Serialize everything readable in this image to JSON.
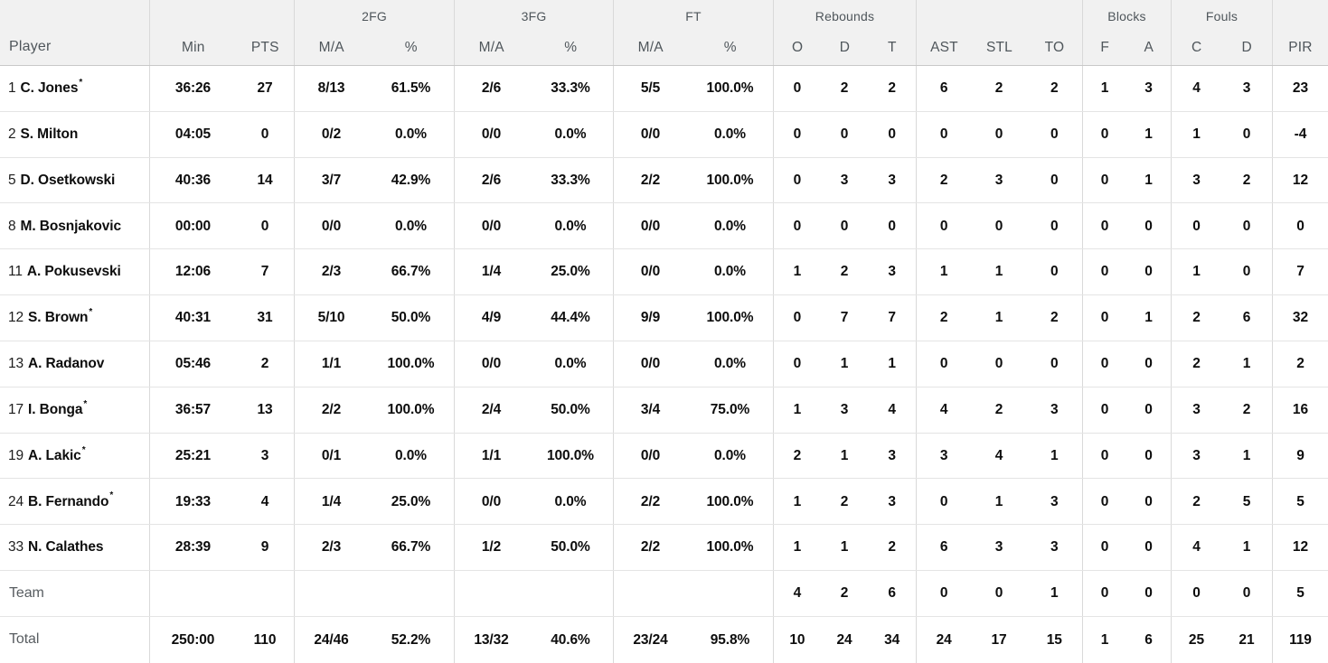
{
  "table": {
    "header": {
      "player": "Player",
      "groups": {
        "fg2": "2FG",
        "fg3": "3FG",
        "ft": "FT",
        "rebounds": "Rebounds",
        "blocks": "Blocks",
        "fouls": "Fouls"
      },
      "cols": {
        "min": "Min",
        "pts": "PTS",
        "ma": "M/A",
        "pct": "%",
        "reb_o": "O",
        "reb_d": "D",
        "reb_t": "T",
        "ast": "AST",
        "stl": "STL",
        "to": "TO",
        "blk_f": "F",
        "blk_a": "A",
        "foul_c": "C",
        "foul_d": "D",
        "pir": "PIR"
      }
    },
    "rows": [
      {
        "type": "player",
        "number": "1",
        "name": "C. Jones",
        "star": "*",
        "min": "36:26",
        "pts": "27",
        "fg2_ma": "8/13",
        "fg2_pct": "61.5%",
        "fg3_ma": "2/6",
        "fg3_pct": "33.3%",
        "ft_ma": "5/5",
        "ft_pct": "100.0%",
        "reb_o": "0",
        "reb_d": "2",
        "reb_t": "2",
        "ast": "6",
        "stl": "2",
        "to": "2",
        "blk_f": "1",
        "blk_a": "3",
        "foul_c": "4",
        "foul_d": "3",
        "pir": "23"
      },
      {
        "type": "player",
        "number": "2",
        "name": "S. Milton",
        "star": "",
        "min": "04:05",
        "pts": "0",
        "fg2_ma": "0/2",
        "fg2_pct": "0.0%",
        "fg3_ma": "0/0",
        "fg3_pct": "0.0%",
        "ft_ma": "0/0",
        "ft_pct": "0.0%",
        "reb_o": "0",
        "reb_d": "0",
        "reb_t": "0",
        "ast": "0",
        "stl": "0",
        "to": "0",
        "blk_f": "0",
        "blk_a": "1",
        "foul_c": "1",
        "foul_d": "0",
        "pir": "-4"
      },
      {
        "type": "player",
        "number": "5",
        "name": "D. Osetkowski",
        "star": "",
        "min": "40:36",
        "pts": "14",
        "fg2_ma": "3/7",
        "fg2_pct": "42.9%",
        "fg3_ma": "2/6",
        "fg3_pct": "33.3%",
        "ft_ma": "2/2",
        "ft_pct": "100.0%",
        "reb_o": "0",
        "reb_d": "3",
        "reb_t": "3",
        "ast": "2",
        "stl": "3",
        "to": "0",
        "blk_f": "0",
        "blk_a": "1",
        "foul_c": "3",
        "foul_d": "2",
        "pir": "12"
      },
      {
        "type": "player",
        "number": "8",
        "name": "M. Bosnjakovic",
        "star": "",
        "min": "00:00",
        "pts": "0",
        "fg2_ma": "0/0",
        "fg2_pct": "0.0%",
        "fg3_ma": "0/0",
        "fg3_pct": "0.0%",
        "ft_ma": "0/0",
        "ft_pct": "0.0%",
        "reb_o": "0",
        "reb_d": "0",
        "reb_t": "0",
        "ast": "0",
        "stl": "0",
        "to": "0",
        "blk_f": "0",
        "blk_a": "0",
        "foul_c": "0",
        "foul_d": "0",
        "pir": "0"
      },
      {
        "type": "player",
        "number": "11",
        "name": "A. Pokusevski",
        "star": "",
        "min": "12:06",
        "pts": "7",
        "fg2_ma": "2/3",
        "fg2_pct": "66.7%",
        "fg3_ma": "1/4",
        "fg3_pct": "25.0%",
        "ft_ma": "0/0",
        "ft_pct": "0.0%",
        "reb_o": "1",
        "reb_d": "2",
        "reb_t": "3",
        "ast": "1",
        "stl": "1",
        "to": "0",
        "blk_f": "0",
        "blk_a": "0",
        "foul_c": "1",
        "foul_d": "0",
        "pir": "7"
      },
      {
        "type": "player",
        "number": "12",
        "name": "S. Brown",
        "star": "*",
        "min": "40:31",
        "pts": "31",
        "fg2_ma": "5/10",
        "fg2_pct": "50.0%",
        "fg3_ma": "4/9",
        "fg3_pct": "44.4%",
        "ft_ma": "9/9",
        "ft_pct": "100.0%",
        "reb_o": "0",
        "reb_d": "7",
        "reb_t": "7",
        "ast": "2",
        "stl": "1",
        "to": "2",
        "blk_f": "0",
        "blk_a": "1",
        "foul_c": "2",
        "foul_d": "6",
        "pir": "32"
      },
      {
        "type": "player",
        "number": "13",
        "name": "A. Radanov",
        "star": "",
        "min": "05:46",
        "pts": "2",
        "fg2_ma": "1/1",
        "fg2_pct": "100.0%",
        "fg3_ma": "0/0",
        "fg3_pct": "0.0%",
        "ft_ma": "0/0",
        "ft_pct": "0.0%",
        "reb_o": "0",
        "reb_d": "1",
        "reb_t": "1",
        "ast": "0",
        "stl": "0",
        "to": "0",
        "blk_f": "0",
        "blk_a": "0",
        "foul_c": "2",
        "foul_d": "1",
        "pir": "2"
      },
      {
        "type": "player",
        "number": "17",
        "name": "I. Bonga",
        "star": "*",
        "min": "36:57",
        "pts": "13",
        "fg2_ma": "2/2",
        "fg2_pct": "100.0%",
        "fg3_ma": "2/4",
        "fg3_pct": "50.0%",
        "ft_ma": "3/4",
        "ft_pct": "75.0%",
        "reb_o": "1",
        "reb_d": "3",
        "reb_t": "4",
        "ast": "4",
        "stl": "2",
        "to": "3",
        "blk_f": "0",
        "blk_a": "0",
        "foul_c": "3",
        "foul_d": "2",
        "pir": "16"
      },
      {
        "type": "player",
        "number": "19",
        "name": "A. Lakic",
        "star": "*",
        "min": "25:21",
        "pts": "3",
        "fg2_ma": "0/1",
        "fg2_pct": "0.0%",
        "fg3_ma": "1/1",
        "fg3_pct": "100.0%",
        "ft_ma": "0/0",
        "ft_pct": "0.0%",
        "reb_o": "2",
        "reb_d": "1",
        "reb_t": "3",
        "ast": "3",
        "stl": "4",
        "to": "1",
        "blk_f": "0",
        "blk_a": "0",
        "foul_c": "3",
        "foul_d": "1",
        "pir": "9"
      },
      {
        "type": "player",
        "number": "24",
        "name": "B. Fernando",
        "star": "*",
        "min": "19:33",
        "pts": "4",
        "fg2_ma": "1/4",
        "fg2_pct": "25.0%",
        "fg3_ma": "0/0",
        "fg3_pct": "0.0%",
        "ft_ma": "2/2",
        "ft_pct": "100.0%",
        "reb_o": "1",
        "reb_d": "2",
        "reb_t": "3",
        "ast": "0",
        "stl": "1",
        "to": "3",
        "blk_f": "0",
        "blk_a": "0",
        "foul_c": "2",
        "foul_d": "5",
        "pir": "5"
      },
      {
        "type": "player",
        "number": "33",
        "name": "N. Calathes",
        "star": "",
        "min": "28:39",
        "pts": "9",
        "fg2_ma": "2/3",
        "fg2_pct": "66.7%",
        "fg3_ma": "1/2",
        "fg3_pct": "50.0%",
        "ft_ma": "2/2",
        "ft_pct": "100.0%",
        "reb_o": "1",
        "reb_d": "1",
        "reb_t": "2",
        "ast": "6",
        "stl": "3",
        "to": "3",
        "blk_f": "0",
        "blk_a": "0",
        "foul_c": "4",
        "foul_d": "1",
        "pir": "12"
      },
      {
        "type": "summary",
        "number": "",
        "name": "Team",
        "star": "",
        "min": "",
        "pts": "",
        "fg2_ma": "",
        "fg2_pct": "",
        "fg3_ma": "",
        "fg3_pct": "",
        "ft_ma": "",
        "ft_pct": "",
        "reb_o": "4",
        "reb_d": "2",
        "reb_t": "6",
        "ast": "0",
        "stl": "0",
        "to": "1",
        "blk_f": "0",
        "blk_a": "0",
        "foul_c": "0",
        "foul_d": "0",
        "pir": "5"
      },
      {
        "type": "summary",
        "number": "",
        "name": "Total",
        "star": "",
        "min": "250:00",
        "pts": "110",
        "fg2_ma": "24/46",
        "fg2_pct": "52.2%",
        "fg3_ma": "13/32",
        "fg3_pct": "40.6%",
        "ft_ma": "23/24",
        "ft_pct": "95.8%",
        "reb_o": "10",
        "reb_d": "24",
        "reb_t": "34",
        "ast": "24",
        "stl": "17",
        "to": "15",
        "blk_f": "1",
        "blk_a": "6",
        "foul_c": "25",
        "foul_d": "21",
        "pir": "119"
      }
    ]
  },
  "colors": {
    "header_bg": "#f1f1f1",
    "header_text": "#4f565b",
    "header_border": "#c9c9c9",
    "divider": "#d9d9d9",
    "row_border": "#e4e4e4",
    "data_text": "#0d0d0d"
  }
}
